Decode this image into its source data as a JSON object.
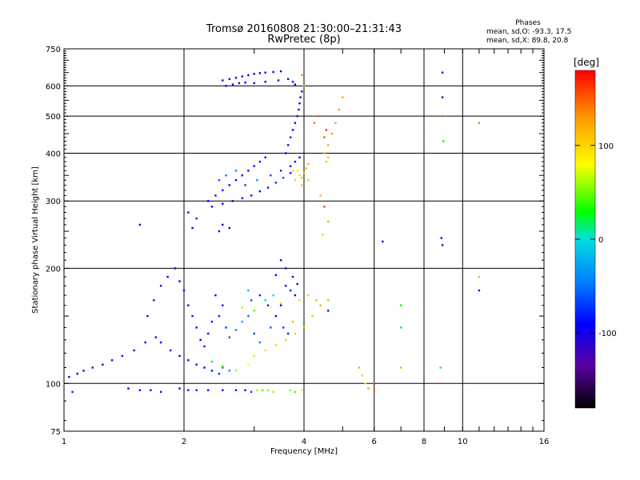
{
  "title": "Tromsø 20160808 21:30:00–21:31:43",
  "subtitle": "RwPretec (8p)",
  "phases": {
    "heading": "Phases",
    "line_o": "mean, sd,O: -93.3, 17.5",
    "line_x": "mean, sd,X: 89.8, 20.8"
  },
  "colorbar": {
    "label": "[deg]",
    "ticks": [
      {
        "label": "100",
        "value": 100
      },
      {
        "label": "0",
        "value": 0
      },
      {
        "label": "-100",
        "value": -100
      }
    ],
    "range": [
      -180,
      180
    ],
    "colors": [
      "#000000",
      "#5a00a0",
      "#0000ff",
      "#0080ff",
      "#00e0e0",
      "#00ff00",
      "#ffff00",
      "#ff9900",
      "#ff0000"
    ]
  },
  "chart_data": {
    "type": "scatter",
    "title": "Tromsø 20160808 21:30:00–21:31:43",
    "subtitle": "RwPretec (8p)",
    "xlabel": "Frequency [MHz]",
    "ylabel": "Stationary phase Virtual Height [km]",
    "xscale": "log",
    "yscale": "log",
    "xlim": [
      1,
      16
    ],
    "ylim": [
      75,
      750
    ],
    "xticks": [
      {
        "label": "1",
        "value": 1
      },
      {
        "label": "2",
        "value": 2
      },
      {
        "label": "4",
        "value": 4
      },
      {
        "label": "6",
        "value": 6
      },
      {
        "label": "8",
        "value": 8
      },
      {
        "label": "10",
        "value": 10
      },
      {
        "label": "16",
        "value": 16
      }
    ],
    "yticks": [
      {
        "label": "75",
        "value": 75
      },
      {
        "label": "100",
        "value": 100
      },
      {
        "label": "200",
        "value": 200
      },
      {
        "label": "300",
        "value": 300
      },
      {
        "label": "400",
        "value": 400
      },
      {
        "label": "500",
        "value": 500
      },
      {
        "label": "600",
        "value": 600
      },
      {
        "label": "750",
        "value": 750
      }
    ],
    "grid": true,
    "color_scale": "phase in deg",
    "series": [
      {
        "points": [
          [
            1.03,
            104,
            -95
          ],
          [
            1.08,
            106,
            -100
          ],
          [
            1.12,
            108,
            -92
          ],
          [
            1.18,
            110,
            -98
          ],
          [
            1.25,
            112,
            -90
          ],
          [
            1.32,
            115,
            -95
          ],
          [
            1.4,
            118,
            -100
          ],
          [
            1.5,
            122,
            -92
          ],
          [
            1.6,
            128,
            -96
          ],
          [
            1.7,
            132,
            -100
          ],
          [
            1.62,
            150,
            -95
          ],
          [
            1.68,
            165,
            -98
          ],
          [
            1.75,
            180,
            -93
          ],
          [
            1.82,
            190,
            -100
          ],
          [
            1.9,
            200,
            -95
          ],
          [
            1.95,
            185,
            -90
          ],
          [
            2.0,
            175,
            -98
          ],
          [
            2.05,
            160,
            -92
          ],
          [
            2.1,
            150,
            -85
          ],
          [
            2.15,
            140,
            -95
          ],
          [
            2.2,
            130,
            -88
          ],
          [
            2.25,
            125,
            -80
          ],
          [
            2.3,
            135,
            -90
          ],
          [
            2.35,
            145,
            -85
          ],
          [
            2.45,
            150,
            -80
          ],
          [
            2.55,
            140,
            -70
          ],
          [
            2.6,
            132,
            -60
          ],
          [
            2.7,
            138,
            -40
          ],
          [
            2.8,
            145,
            -30
          ],
          [
            2.9,
            150,
            -50
          ],
          [
            2.95,
            165,
            -60
          ],
          [
            3.1,
            170,
            -80
          ],
          [
            3.25,
            160,
            -85
          ],
          [
            3.4,
            150,
            -90
          ],
          [
            3.5,
            160,
            -95
          ],
          [
            3.6,
            180,
            -92
          ],
          [
            3.7,
            175,
            -85
          ],
          [
            3.8,
            170,
            -88
          ],
          [
            2.4,
            170,
            -90
          ],
          [
            2.5,
            160,
            -80
          ],
          [
            1.75,
            128,
            -95
          ],
          [
            1.85,
            122,
            -92
          ],
          [
            1.95,
            118,
            -100
          ],
          [
            2.05,
            115,
            -98
          ],
          [
            2.15,
            112,
            -95
          ],
          [
            2.25,
            110,
            -90
          ],
          [
            2.35,
            108,
            -85
          ],
          [
            2.45,
            106,
            -80
          ],
          [
            2.5,
            110,
            -60
          ],
          [
            2.6,
            108,
            -40
          ],
          [
            2.35,
            114,
            25
          ],
          [
            2.5,
            111,
            45
          ],
          [
            2.7,
            108,
            60
          ],
          [
            2.9,
            112,
            80
          ],
          [
            3.0,
            118,
            90
          ],
          [
            3.2,
            122,
            95
          ],
          [
            3.4,
            126,
            100
          ],
          [
            3.6,
            130,
            105
          ],
          [
            3.8,
            135,
            110
          ],
          [
            4.0,
            140,
            115
          ],
          [
            4.2,
            150,
            118
          ],
          [
            4.4,
            160,
            120
          ],
          [
            4.6,
            165,
            122
          ],
          [
            3.3,
            158,
            80
          ],
          [
            3.5,
            162,
            100
          ],
          [
            3.9,
            165,
            105
          ],
          [
            4.1,
            170,
            110
          ],
          [
            4.3,
            165,
            115
          ],
          [
            2.8,
            158,
            60
          ],
          [
            3.0,
            155,
            40
          ],
          [
            3.2,
            165,
            20
          ],
          [
            3.35,
            170,
            0
          ],
          [
            2.9,
            175,
            -20
          ],
          [
            3.0,
            135,
            -70
          ],
          [
            3.1,
            128,
            -50
          ],
          [
            3.3,
            140,
            -60
          ],
          [
            3.55,
            140,
            -70
          ],
          [
            3.65,
            135,
            -80
          ],
          [
            3.75,
            145,
            120
          ],
          [
            4.6,
            155,
            -95
          ],
          [
            1.45,
            97,
            -90
          ],
          [
            1.55,
            96,
            -95
          ],
          [
            1.65,
            96,
            -100
          ],
          [
            1.75,
            95,
            -92
          ],
          [
            1.95,
            97,
            -95
          ],
          [
            2.05,
            96,
            -100
          ],
          [
            2.15,
            96,
            -90
          ],
          [
            2.3,
            96,
            -85
          ],
          [
            2.5,
            96,
            -95
          ],
          [
            2.7,
            96,
            -100
          ],
          [
            2.85,
            96,
            -95
          ],
          [
            2.95,
            95,
            -70
          ],
          [
            3.05,
            96,
            60
          ],
          [
            3.15,
            96,
            40
          ],
          [
            3.25,
            96,
            45
          ],
          [
            3.35,
            95,
            55
          ],
          [
            3.7,
            96,
            55
          ],
          [
            3.8,
            95,
            40
          ],
          [
            1.05,
            95,
            -80
          ],
          [
            3.95,
            96,
            90
          ],
          [
            2.3,
            300,
            -95
          ],
          [
            2.4,
            310,
            -100
          ],
          [
            2.5,
            320,
            -92
          ],
          [
            2.6,
            330,
            -96
          ],
          [
            2.7,
            340,
            -98
          ],
          [
            2.8,
            350,
            -95
          ],
          [
            2.9,
            360,
            -100
          ],
          [
            3.0,
            370,
            -92
          ],
          [
            3.1,
            380,
            -95
          ],
          [
            3.2,
            390,
            -98
          ],
          [
            2.35,
            290,
            -90
          ],
          [
            2.5,
            295,
            -95
          ],
          [
            2.65,
            300,
            -100
          ],
          [
            2.8,
            305,
            -92
          ],
          [
            2.95,
            310,
            -95
          ],
          [
            3.1,
            318,
            -90
          ],
          [
            3.25,
            325,
            -85
          ],
          [
            3.4,
            335,
            -80
          ],
          [
            3.55,
            345,
            -60
          ],
          [
            3.7,
            355,
            -90
          ],
          [
            2.45,
            340,
            -60
          ],
          [
            2.55,
            350,
            -50
          ],
          [
            2.7,
            360,
            -40
          ],
          [
            2.85,
            330,
            -70
          ],
          [
            3.05,
            340,
            -30
          ],
          [
            3.3,
            350,
            -60
          ],
          [
            3.5,
            360,
            -80
          ],
          [
            3.7,
            370,
            -90
          ],
          [
            3.8,
            380,
            -95
          ],
          [
            3.9,
            390,
            -100
          ],
          [
            3.6,
            400,
            -95
          ],
          [
            3.65,
            420,
            -100
          ],
          [
            3.7,
            440,
            -95
          ],
          [
            3.75,
            460,
            -90
          ],
          [
            3.8,
            480,
            -95
          ],
          [
            3.85,
            500,
            -100
          ],
          [
            3.88,
            520,
            -92
          ],
          [
            3.9,
            540,
            -95
          ],
          [
            3.92,
            560,
            -98
          ],
          [
            3.95,
            580,
            -100
          ],
          [
            2.5,
            620,
            -95
          ],
          [
            2.6,
            625,
            -98
          ],
          [
            2.7,
            630,
            -100
          ],
          [
            2.8,
            635,
            -92
          ],
          [
            2.9,
            640,
            -95
          ],
          [
            3.0,
            645,
            -100
          ],
          [
            3.1,
            648,
            -96
          ],
          [
            3.2,
            650,
            -98
          ],
          [
            3.35,
            652,
            -95
          ],
          [
            3.5,
            655,
            -100
          ],
          [
            2.55,
            600,
            -90
          ],
          [
            2.65,
            605,
            -95
          ],
          [
            2.75,
            610,
            -100
          ],
          [
            2.85,
            612,
            -92
          ],
          [
            3.0,
            610,
            -95
          ],
          [
            3.2,
            615,
            -90
          ],
          [
            3.45,
            620,
            -100
          ],
          [
            3.65,
            625,
            -95
          ],
          [
            3.75,
            615,
            -92
          ],
          [
            3.8,
            605,
            -98
          ],
          [
            3.85,
            360,
            90
          ],
          [
            3.9,
            350,
            100
          ],
          [
            3.95,
            345,
            110
          ],
          [
            4.0,
            355,
            115
          ],
          [
            4.05,
            365,
            120
          ],
          [
            4.1,
            375,
            118
          ],
          [
            3.75,
            360,
            100
          ],
          [
            3.8,
            340,
            95
          ],
          [
            3.95,
            330,
            105
          ],
          [
            4.1,
            340,
            110
          ],
          [
            4.5,
            400,
            120
          ],
          [
            4.6,
            420,
            125
          ],
          [
            4.7,
            450,
            130
          ],
          [
            4.8,
            480,
            128
          ],
          [
            4.9,
            520,
            125
          ],
          [
            5.0,
            560,
            122
          ],
          [
            4.55,
            380,
            118
          ],
          [
            4.6,
            390,
            110
          ],
          [
            4.5,
            440,
            150
          ],
          [
            4.55,
            460,
            160
          ],
          [
            3.95,
            640,
            130
          ],
          [
            4.0,
            600,
            120
          ],
          [
            4.25,
            480,
            140
          ],
          [
            4.35,
            500,
            150
          ],
          [
            4.4,
            310,
            115
          ],
          [
            4.5,
            290,
            160
          ],
          [
            4.6,
            265,
            120
          ],
          [
            4.45,
            245,
            110
          ],
          [
            2.1,
            255,
            -95
          ],
          [
            2.15,
            270,
            -100
          ],
          [
            1.55,
            260,
            -95
          ],
          [
            2.05,
            280,
            -100
          ],
          [
            2.5,
            260,
            -90
          ],
          [
            2.6,
            255,
            -95
          ],
          [
            2.45,
            250,
            -80
          ],
          [
            8.9,
            650,
            -100
          ],
          [
            8.9,
            560,
            -90
          ],
          [
            8.9,
            500,
            150
          ],
          [
            8.95,
            430,
            30
          ],
          [
            11.0,
            480,
            140
          ],
          [
            8.85,
            240,
            -95
          ],
          [
            8.9,
            230,
            -100
          ],
          [
            11.0,
            190,
            120
          ],
          [
            11.0,
            175,
            -95
          ],
          [
            6.3,
            235,
            -90
          ],
          [
            7.0,
            160,
            30
          ],
          [
            7.0,
            140,
            20
          ],
          [
            7.0,
            110,
            120
          ],
          [
            8.8,
            110,
            30
          ],
          [
            5.5,
            110,
            120
          ],
          [
            6.0,
            100,
            160
          ],
          [
            6.0,
            95,
            150
          ],
          [
            5.6,
            105,
            100
          ],
          [
            5.7,
            100,
            80
          ],
          [
            5.8,
            97,
            130
          ],
          [
            3.4,
            192,
            -95
          ],
          [
            3.5,
            210,
            -90
          ],
          [
            3.6,
            200,
            -100
          ],
          [
            3.75,
            190,
            -95
          ],
          [
            3.85,
            182,
            -98
          ]
        ]
      }
    ]
  }
}
